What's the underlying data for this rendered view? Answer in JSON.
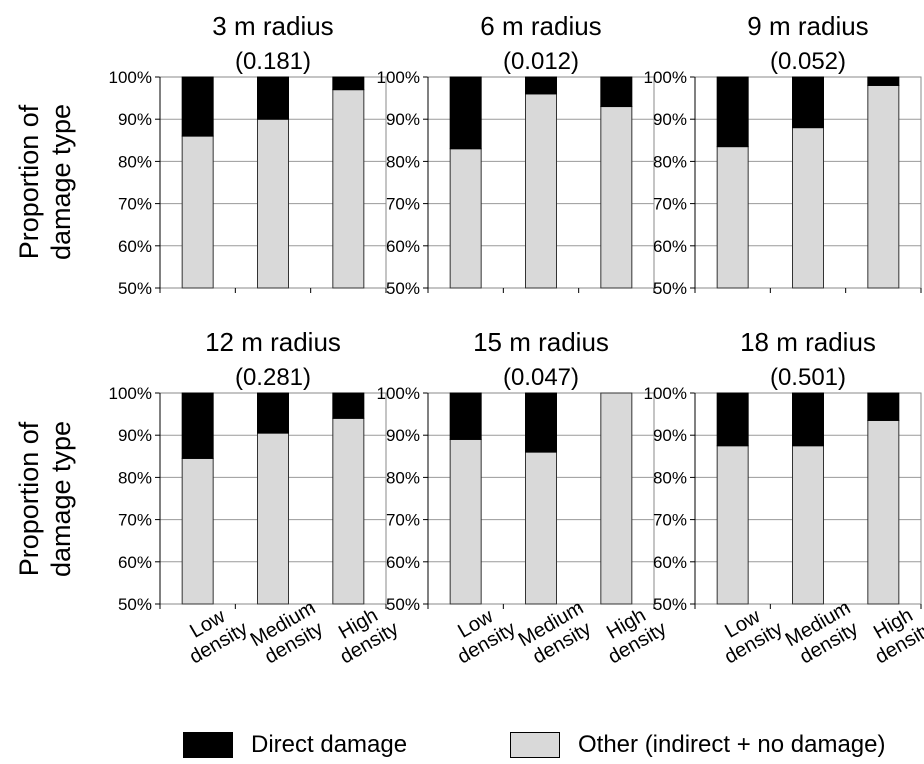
{
  "colors": {
    "direct": "#000000",
    "other": "#d9d9d9",
    "grid": "#9a9a9a",
    "frame": "#8a8a8a"
  },
  "y_axis_label": [
    "Proportion of",
    "damage type"
  ],
  "legend": {
    "direct_label": "Direct damage",
    "other_label": "Other (indirect + no damage)"
  },
  "chart_data": [
    {
      "type": "bar",
      "title": "3 m radius",
      "subtitle": "(0.181)",
      "categories": [
        [
          "Low",
          "density"
        ],
        [
          "Medium",
          "density"
        ],
        [
          "High",
          "density"
        ]
      ],
      "ylim": [
        50,
        100
      ],
      "yticks": [
        "50%",
        "60%",
        "70%",
        "80%",
        "90%",
        "100%"
      ],
      "series": [
        {
          "name": "Other (indirect + no damage)",
          "values": [
            86,
            90,
            97
          ]
        },
        {
          "name": "Direct damage",
          "values": [
            14,
            10,
            3
          ]
        }
      ]
    },
    {
      "type": "bar",
      "title": "6 m radius",
      "subtitle": "(0.012)",
      "categories": [
        [
          "Low",
          "density"
        ],
        [
          "Medium",
          "density"
        ],
        [
          "High",
          "density"
        ]
      ],
      "ylim": [
        50,
        100
      ],
      "yticks": [
        "50%",
        "60%",
        "70%",
        "80%",
        "90%",
        "100%"
      ],
      "series": [
        {
          "name": "Other (indirect + no damage)",
          "values": [
            83,
            96,
            93
          ]
        },
        {
          "name": "Direct damage",
          "values": [
            17,
            4,
            7
          ]
        }
      ]
    },
    {
      "type": "bar",
      "title": "9 m radius",
      "subtitle": "(0.052)",
      "categories": [
        [
          "Low",
          "density"
        ],
        [
          "Medium",
          "density"
        ],
        [
          "High",
          "density"
        ]
      ],
      "ylim": [
        50,
        100
      ],
      "yticks": [
        "50%",
        "60%",
        "70%",
        "80%",
        "90%",
        "100%"
      ],
      "series": [
        {
          "name": "Other (indirect + no damage)",
          "values": [
            83.5,
            88,
            98
          ]
        },
        {
          "name": "Direct damage",
          "values": [
            16.5,
            12,
            2
          ]
        }
      ]
    },
    {
      "type": "bar",
      "title": "12 m radius",
      "subtitle": "(0.281)",
      "categories": [
        [
          "Low",
          "density"
        ],
        [
          "Medium",
          "density"
        ],
        [
          "High",
          "density"
        ]
      ],
      "ylim": [
        50,
        100
      ],
      "yticks": [
        "50%",
        "60%",
        "70%",
        "80%",
        "90%",
        "100%"
      ],
      "series": [
        {
          "name": "Other (indirect + no damage)",
          "values": [
            84.5,
            90.5,
            94
          ]
        },
        {
          "name": "Direct damage",
          "values": [
            15.5,
            9.5,
            6
          ]
        }
      ]
    },
    {
      "type": "bar",
      "title": "15 m radius",
      "subtitle": "(0.047)",
      "categories": [
        [
          "Low",
          "density"
        ],
        [
          "Medium",
          "density"
        ],
        [
          "High",
          "density"
        ]
      ],
      "ylim": [
        50,
        100
      ],
      "yticks": [
        "50%",
        "60%",
        "70%",
        "80%",
        "90%",
        "100%"
      ],
      "series": [
        {
          "name": "Other (indirect + no damage)",
          "values": [
            89,
            86,
            100
          ]
        },
        {
          "name": "Direct damage",
          "values": [
            11,
            14,
            0
          ]
        }
      ]
    },
    {
      "type": "bar",
      "title": "18 m radius",
      "subtitle": "(0.501)",
      "categories": [
        [
          "Low",
          "density"
        ],
        [
          "Medium",
          "density"
        ],
        [
          "High",
          "density"
        ]
      ],
      "ylim": [
        50,
        100
      ],
      "yticks": [
        "50%",
        "60%",
        "70%",
        "80%",
        "90%",
        "100%"
      ],
      "series": [
        {
          "name": "Other (indirect + no damage)",
          "values": [
            87.5,
            87.5,
            93.5
          ]
        },
        {
          "name": "Direct damage",
          "values": [
            12.5,
            12.5,
            6.5
          ]
        }
      ]
    }
  ]
}
